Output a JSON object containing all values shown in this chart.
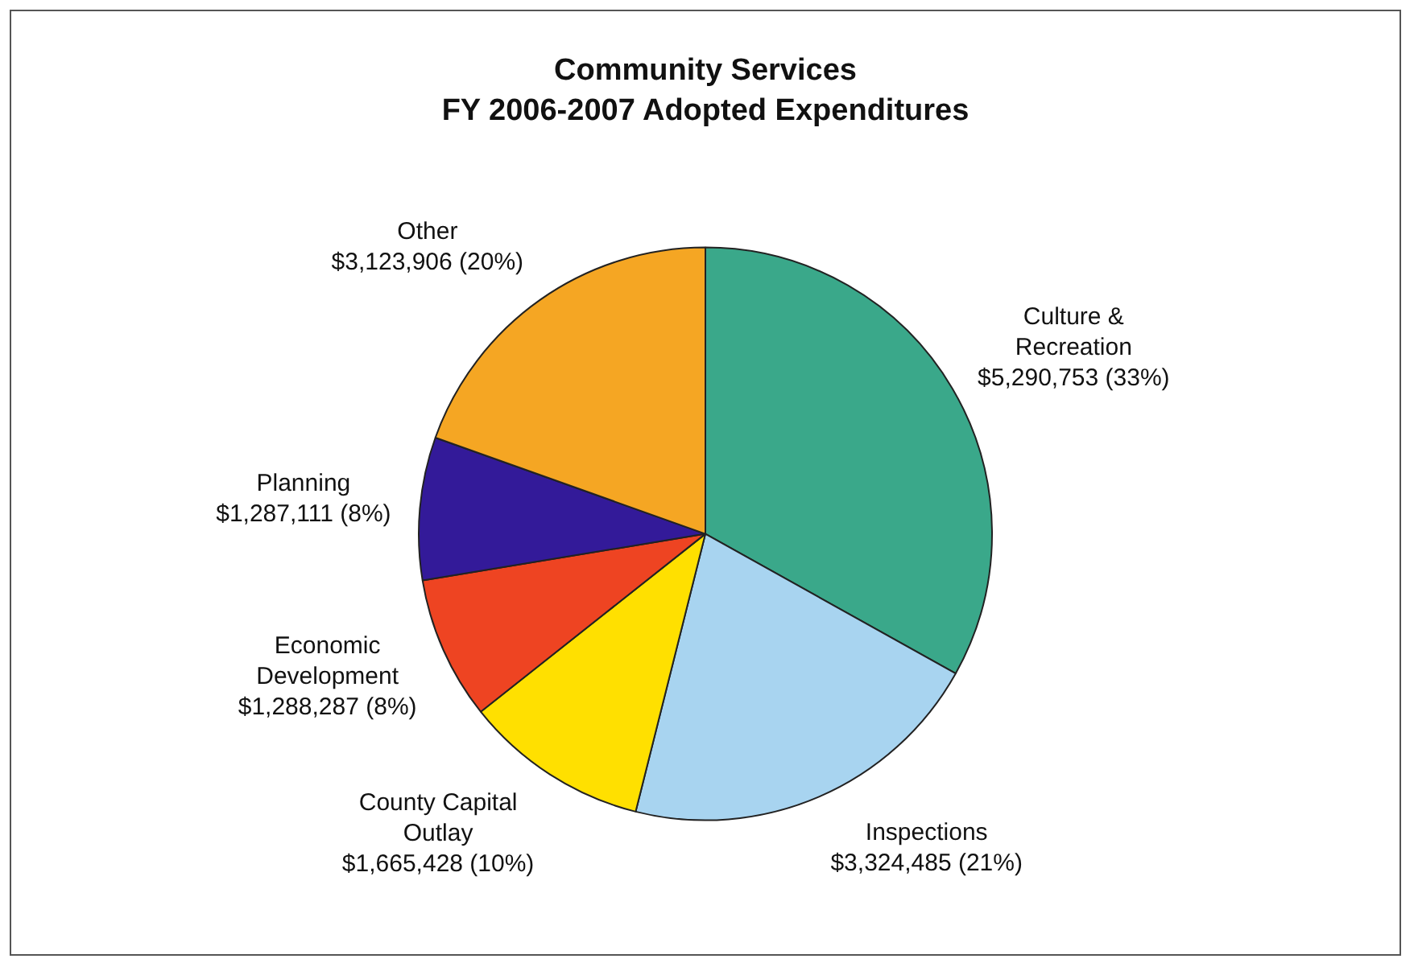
{
  "chart_data": {
    "type": "pie",
    "title": "Community Services",
    "subtitle": "FY 2006-2007 Adopted Expenditures",
    "categories": [
      "Culture & Recreation",
      "Inspections",
      "County Capital Outlay",
      "Economic Development",
      "Planning",
      "Other"
    ],
    "values": [
      5290753,
      3324485,
      1665428,
      1288287,
      1287111,
      3123906
    ],
    "colors": [
      "#3aa88a",
      "#a8d4f0",
      "#ffe000",
      "#ee4422",
      "#331a99",
      "#f5a623"
    ],
    "value_labels": [
      "$5,290,753 (33%)",
      "$3,324,485 (21%)",
      "$1,665,428 (10%)",
      "$1,288,287 (8%)",
      "$1,287,111 (8%)",
      "$3,123,906 (20%)"
    ],
    "legend": false
  }
}
